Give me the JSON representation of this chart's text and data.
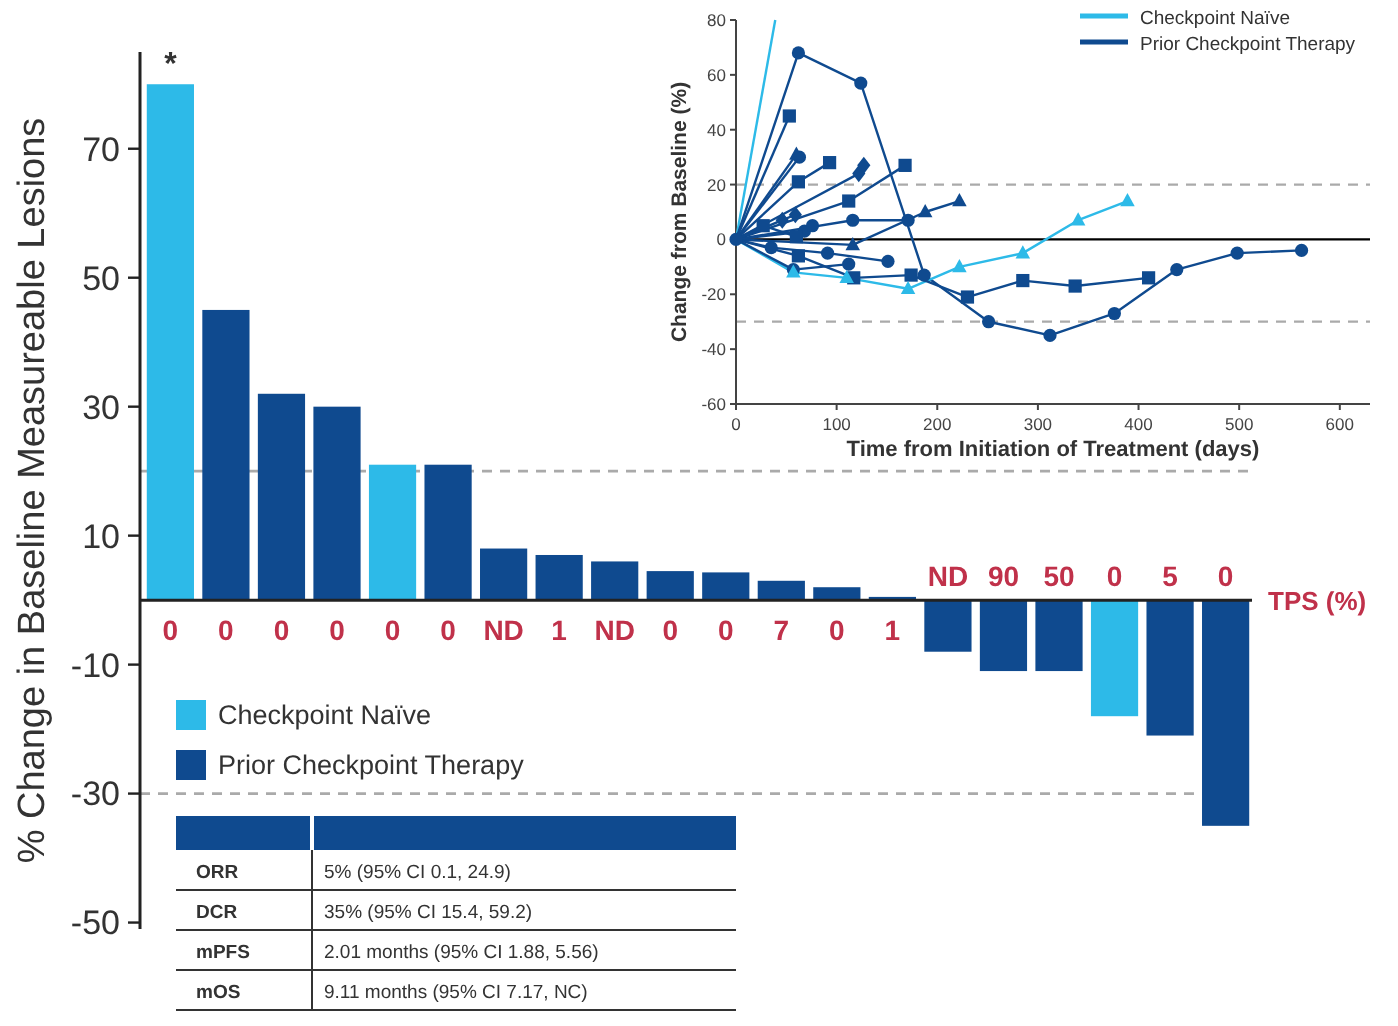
{
  "chart_data": [
    {
      "type": "bar",
      "stacked": true,
      "ylabel": "% Change in Baseline Measureable Lesions",
      "categories": [
        "0",
        "0",
        "0",
        "0",
        "0",
        "0",
        "ND",
        "1",
        "ND",
        "0",
        "0",
        "7",
        "0",
        "1",
        "ND",
        "90",
        "50",
        "0",
        "5",
        "0"
      ],
      "series": [
        {
          "name": "Checkpoint Naïve",
          "color": "#2dbae8",
          "values": [
            80,
            null,
            null,
            null,
            21,
            null,
            null,
            null,
            null,
            null,
            null,
            null,
            null,
            null,
            null,
            null,
            null,
            -18,
            null,
            null
          ]
        },
        {
          "name": "Prior Checkpoint Therapy",
          "color": "#0f4a8f",
          "values": [
            null,
            45,
            32,
            30,
            null,
            21,
            8,
            7,
            6,
            4.5,
            4.3,
            3,
            2,
            0.5,
            -8,
            -11,
            -11,
            null,
            -21,
            -35
          ]
        }
      ],
      "ylim": [
        -51,
        85
      ],
      "yticks": [
        -50,
        -30,
        -10,
        10,
        30,
        50,
        70
      ],
      "grid": false,
      "legend": "left",
      "ref_lines": [
        {
          "axis": "y",
          "value": 20,
          "color": "#aaaaaa",
          "line_style": "dashed"
        },
        {
          "axis": "y",
          "value": -30,
          "color": "#aaaaaa",
          "line_style": "dashed"
        }
      ],
      "annotations": [
        {
          "text": "*",
          "x": "0",
          "y": 80
        },
        "TPS (%)"
      ]
    },
    {
      "type": "line",
      "xlabel": "Time from Initiation of Treatment (days)",
      "ylabel": "Change from Baseline (%)",
      "xlim": [
        0,
        630
      ],
      "xticks": [
        0,
        100,
        200,
        300,
        400,
        500,
        600
      ],
      "ylim": [
        -60,
        80
      ],
      "yticks": [
        -60,
        -40,
        -20,
        0,
        20,
        40,
        60,
        80
      ],
      "grid": false,
      "legend": "top right",
      "ref_lines": [
        {
          "axis": "y",
          "value": 20,
          "color": "#aaaaaa",
          "line_style": "dashed"
        },
        {
          "axis": "y",
          "value": -30,
          "color": "#aaaaaa",
          "line_style": "dashed"
        },
        {
          "axis": "y",
          "value": 0,
          "color": "#000000",
          "line_style": "solid"
        }
      ],
      "series": [
        {
          "name": "Checkpoint Naïve",
          "color": "#2dbae8",
          "marker": "none",
          "x": [
            0,
            39
          ],
          "values": [
            0,
            80
          ]
        },
        {
          "name": "Prior Checkpoint Therapy",
          "color": "#0f4a8f",
          "marker": "circle",
          "x": [
            0,
            62,
            124,
            187,
            251,
            312,
            376,
            438,
            498,
            562
          ],
          "values": [
            0,
            68,
            57,
            -13,
            -30,
            -35,
            -27,
            -11,
            -5,
            -4
          ]
        },
        {
          "color": "#2dbae8",
          "marker": "triangle",
          "x": [
            0,
            57,
            110,
            171,
            222,
            285,
            340,
            389
          ],
          "values": [
            0,
            -12,
            -14,
            -18,
            -10,
            -5,
            7,
            14
          ]
        },
        {
          "color": "#0f4a8f",
          "marker": "square",
          "x": [
            0,
            62,
            117,
            174,
            230,
            285,
            337,
            410
          ],
          "values": [
            0,
            -6,
            -14,
            -13,
            -21,
            -15,
            -17,
            -14
          ]
        },
        {
          "color": "#0f4a8f",
          "marker": "square",
          "x": [
            0,
            53
          ],
          "values": [
            0,
            45
          ]
        },
        {
          "color": "#0f4a8f",
          "marker": "triangle",
          "x": [
            0,
            60
          ],
          "values": [
            0,
            31
          ]
        },
        {
          "color": "#0f4a8f",
          "marker": "circle",
          "x": [
            0,
            63
          ],
          "values": [
            0,
            30
          ]
        },
        {
          "color": "#0f4a8f",
          "marker": "square",
          "x": [
            0,
            62,
            93
          ],
          "values": [
            0,
            21,
            28
          ]
        },
        {
          "color": "#0f4a8f",
          "marker": "diamond",
          "x": [
            0,
            122,
            127
          ],
          "values": [
            0,
            24,
            27
          ]
        },
        {
          "color": "#0f4a8f",
          "marker": "square",
          "x": [
            0,
            112,
            168
          ],
          "values": [
            0,
            14,
            27
          ]
        },
        {
          "color": "#0f4a8f",
          "marker": "circle",
          "x": [
            0,
            116,
            171
          ],
          "values": [
            0,
            7,
            7
          ]
        },
        {
          "color": "#0f4a8f",
          "marker": "triangle",
          "x": [
            0,
            116,
            188,
            222
          ],
          "values": [
            0,
            -2,
            10,
            14
          ]
        },
        {
          "color": "#0f4a8f",
          "marker": "square",
          "x": [
            0,
            27,
            60
          ],
          "values": [
            0,
            5,
            1
          ]
        },
        {
          "color": "#0f4a8f",
          "marker": "diamond",
          "x": [
            0,
            46,
            59
          ],
          "values": [
            0,
            7,
            9
          ]
        },
        {
          "color": "#0f4a8f",
          "marker": "circle",
          "x": [
            0,
            68,
            76
          ],
          "values": [
            0,
            3,
            5
          ]
        },
        {
          "color": "#0f4a8f",
          "marker": "circle",
          "x": [
            0,
            35,
            91,
            151
          ],
          "values": [
            0,
            -3,
            -5,
            -8
          ]
        },
        {
          "color": "#0f4a8f",
          "marker": "circle",
          "x": [
            0,
            57,
            112
          ],
          "values": [
            0,
            -11,
            -9
          ]
        }
      ]
    },
    {
      "type": "other",
      "annotations": [
        "ORR",
        "5%  (95% CI 0.1, 24.9)",
        "DCR",
        "35% (95% CI 15.4, 59.2)",
        "mPFS",
        "2.01 months (95% CI 1.88, 5.56)",
        "mOS",
        "9.11 months (95% CI 7.17, NC)"
      ]
    }
  ]
}
